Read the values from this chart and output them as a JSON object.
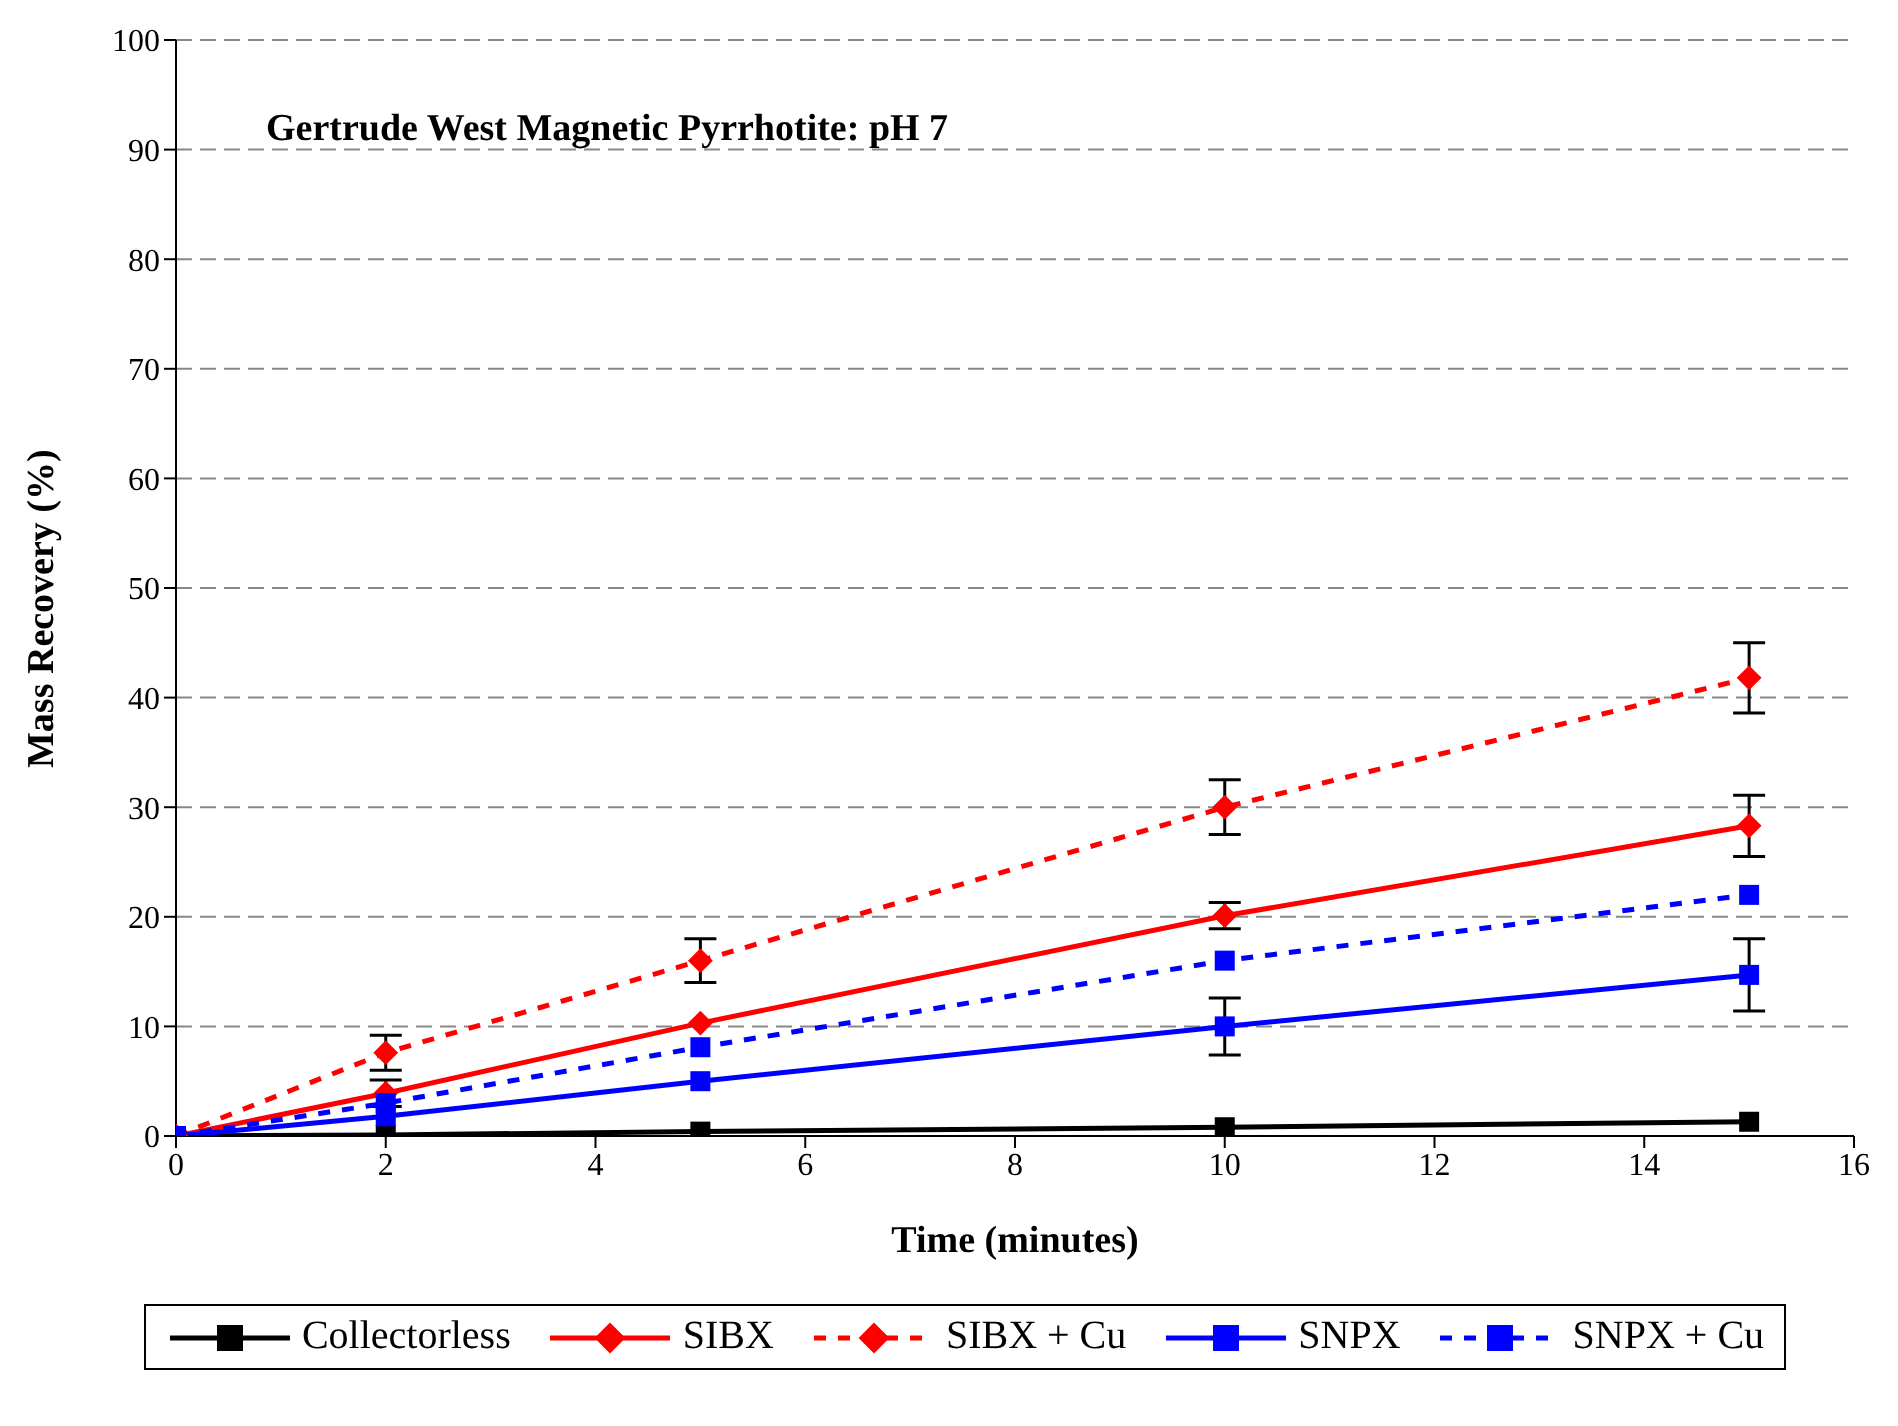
{
  "chart_data": {
    "type": "line",
    "title": "Gertrude West Magnetic Pyrrhotite: pH 7",
    "xlabel": "Time (minutes)",
    "ylabel": "Mass Recovery (%)",
    "x": [
      0,
      2,
      5,
      10,
      15
    ],
    "series": [
      {
        "name": "Collectorless",
        "color": "#000000",
        "marker": "square",
        "line_style": "solid",
        "values": [
          0,
          0.1,
          0.4,
          0.8,
          1.3
        ]
      },
      {
        "name": "SIBX",
        "color": "#ff0000",
        "marker": "diamond",
        "line_style": "solid",
        "values": [
          0,
          3.9,
          10.3,
          20.1,
          28.3
        ],
        "errors": [
          null,
          1.2,
          null,
          1.2,
          2.8
        ]
      },
      {
        "name": "SIBX + Cu",
        "color": "#ff0000",
        "marker": "diamond",
        "line_style": "dashed",
        "values": [
          0,
          7.6,
          16,
          30,
          41.8
        ],
        "errors": [
          null,
          1.6,
          2,
          2.5,
          3.2
        ]
      },
      {
        "name": "SNPX",
        "color": "#0000ff",
        "marker": "square",
        "line_style": "solid",
        "values": [
          0,
          1.8,
          5,
          10,
          14.7
        ],
        "errors": [
          null,
          null,
          null,
          2.6,
          3.3
        ]
      },
      {
        "name": "SNPX + Cu",
        "color": "#0000ff",
        "marker": "square",
        "line_style": "dashed",
        "values": [
          0,
          3,
          8.1,
          16,
          22
        ]
      }
    ],
    "xlim": [
      0,
      16
    ],
    "xticks": [
      0,
      2,
      4,
      6,
      8,
      10,
      12,
      14,
      16
    ],
    "ylim": [
      0,
      100
    ],
    "yticks": [
      0,
      10,
      20,
      30,
      40,
      50,
      60,
      70,
      80,
      90,
      100
    ],
    "grid": "y",
    "legend": "bottom"
  }
}
